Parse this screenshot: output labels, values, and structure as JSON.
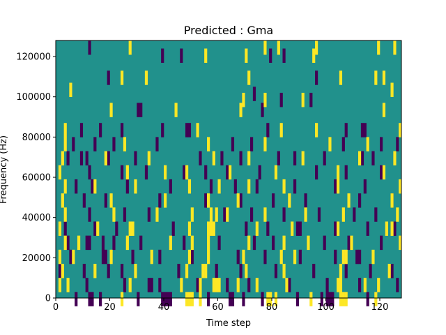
{
  "chart_data": {
    "type": "heatmap",
    "title": "Predicted : Gma",
    "xlabel": "Time step",
    "ylabel": "Frequency (Hz)",
    "xlim": [
      0,
      128
    ],
    "ylim": [
      0,
      128000
    ],
    "x_ticks": [
      0,
      20,
      40,
      60,
      80,
      100,
      120
    ],
    "y_ticks": [
      0,
      20000,
      40000,
      60000,
      80000,
      100000,
      120000
    ],
    "colors": {
      "background": "#21918c",
      "low": "#440154",
      "high": "#fde725"
    },
    "grid": false,
    "legend": "none",
    "cells": {
      "low": [
        [
          12,
          127
        ],
        [
          39,
          123
        ],
        [
          46,
          123
        ],
        [
          79,
          123
        ],
        [
          84,
          123
        ],
        [
          19,
          112
        ],
        [
          96,
          112
        ],
        [
          73,
          104
        ],
        [
          83,
          101
        ],
        [
          94,
          101
        ],
        [
          30,
          96
        ],
        [
          31,
          96
        ],
        [
          76,
          96
        ],
        [
          9,
          86
        ],
        [
          16,
          86
        ],
        [
          24,
          86
        ],
        [
          39,
          86
        ],
        [
          48,
          86
        ],
        [
          49,
          86
        ],
        [
          78,
          86
        ],
        [
          107,
          86
        ],
        [
          113,
          86
        ],
        [
          114,
          86
        ],
        [
          6,
          79
        ],
        [
          14,
          79
        ],
        [
          21,
          79
        ],
        [
          37,
          79
        ],
        [
          65,
          79
        ],
        [
          72,
          79
        ],
        [
          106,
          79
        ],
        [
          120,
          79
        ],
        [
          126,
          79
        ],
        [
          4,
          72
        ],
        [
          9,
          72
        ],
        [
          11,
          72
        ],
        [
          19,
          72
        ],
        [
          29,
          72
        ],
        [
          53,
          72
        ],
        [
          61,
          72
        ],
        [
          68,
          72
        ],
        [
          82,
          72
        ],
        [
          88,
          72
        ],
        [
          99,
          72
        ],
        [
          113,
          72
        ],
        [
          117,
          72
        ],
        [
          12,
          65
        ],
        [
          24,
          65
        ],
        [
          33,
          65
        ],
        [
          47,
          65
        ],
        [
          55,
          65
        ],
        [
          63,
          65
        ],
        [
          75,
          65
        ],
        [
          96,
          65
        ],
        [
          107,
          65
        ],
        [
          120,
          65
        ],
        [
          7,
          58
        ],
        [
          13,
          58
        ],
        [
          26,
          58
        ],
        [
          42,
          58
        ],
        [
          57,
          58
        ],
        [
          66,
          58
        ],
        [
          74,
          58
        ],
        [
          88,
          58
        ],
        [
          103,
          58
        ],
        [
          114,
          58
        ],
        [
          10,
          51
        ],
        [
          18,
          51
        ],
        [
          38,
          51
        ],
        [
          55,
          51
        ],
        [
          68,
          51
        ],
        [
          80,
          51
        ],
        [
          92,
          51
        ],
        [
          112,
          51
        ],
        [
          124,
          51
        ],
        [
          12,
          44
        ],
        [
          25,
          44
        ],
        [
          34,
          44
        ],
        [
          62,
          44
        ],
        [
          72,
          44
        ],
        [
          84,
          44
        ],
        [
          97,
          44
        ],
        [
          110,
          44
        ],
        [
          118,
          44
        ],
        [
          3,
          37
        ],
        [
          14,
          37
        ],
        [
          22,
          37
        ],
        [
          43,
          37
        ],
        [
          57,
          37
        ],
        [
          70,
          37
        ],
        [
          78,
          37
        ],
        [
          89,
          37
        ],
        [
          90,
          37
        ],
        [
          103,
          37
        ],
        [
          115,
          37
        ],
        [
          125,
          37
        ],
        [
          4,
          30
        ],
        [
          11,
          30
        ],
        [
          12,
          30
        ],
        [
          17,
          30
        ],
        [
          21,
          30
        ],
        [
          31,
          30
        ],
        [
          47,
          30
        ],
        [
          60,
          30
        ],
        [
          73,
          30
        ],
        [
          80,
          30
        ],
        [
          99,
          30
        ],
        [
          108,
          30
        ],
        [
          120,
          30
        ],
        [
          5,
          23
        ],
        [
          17,
          23
        ],
        [
          18,
          23
        ],
        [
          28,
          23
        ],
        [
          38,
          23
        ],
        [
          50,
          23
        ],
        [
          67,
          23
        ],
        [
          77,
          23
        ],
        [
          90,
          23
        ],
        [
          103,
          23
        ],
        [
          111,
          23
        ],
        [
          112,
          23
        ],
        [
          1,
          16
        ],
        [
          10,
          16
        ],
        [
          19,
          16
        ],
        [
          24,
          16
        ],
        [
          45,
          16
        ],
        [
          59,
          16
        ],
        [
          68,
          16
        ],
        [
          81,
          16
        ],
        [
          95,
          16
        ],
        [
          107,
          16
        ],
        [
          116,
          16
        ],
        [
          124,
          16
        ],
        [
          11,
          9
        ],
        [
          25,
          9
        ],
        [
          34,
          9
        ],
        [
          35,
          9
        ],
        [
          38,
          9
        ],
        [
          52,
          9
        ],
        [
          63,
          9
        ],
        [
          71,
          9
        ],
        [
          86,
          9
        ],
        [
          100,
          9
        ],
        [
          112,
          9
        ],
        [
          126,
          9
        ],
        [
          7,
          2
        ],
        [
          12,
          2
        ],
        [
          13,
          2
        ],
        [
          16,
          2
        ],
        [
          30,
          2
        ],
        [
          39,
          2
        ],
        [
          40,
          2
        ],
        [
          41,
          2
        ],
        [
          42,
          2
        ],
        [
          56,
          2
        ],
        [
          64,
          2
        ],
        [
          65,
          2
        ],
        [
          69,
          2
        ],
        [
          76,
          2
        ],
        [
          89,
          2
        ],
        [
          98,
          2
        ],
        [
          100,
          2
        ],
        [
          101,
          2
        ],
        [
          102,
          2
        ],
        [
          115,
          2
        ]
      ],
      "high": [
        [
          27,
          127
        ],
        [
          77,
          127
        ],
        [
          82,
          127
        ],
        [
          96,
          127
        ],
        [
          119,
          127
        ],
        [
          125,
          127
        ],
        [
          55,
          123
        ],
        [
          70,
          123
        ],
        [
          95,
          123
        ],
        [
          24,
          112
        ],
        [
          33,
          112
        ],
        [
          71,
          112
        ],
        [
          105,
          112
        ],
        [
          118,
          112
        ],
        [
          121,
          112
        ],
        [
          5,
          106
        ],
        [
          124,
          106
        ],
        [
          69,
          101
        ],
        [
          77,
          101
        ],
        [
          91,
          101
        ],
        [
          20,
          96
        ],
        [
          44,
          96
        ],
        [
          68,
          96
        ],
        [
          121,
          96
        ],
        [
          3,
          86
        ],
        [
          52,
          86
        ],
        [
          83,
          86
        ],
        [
          96,
          86
        ],
        [
          127,
          86
        ],
        [
          3,
          79
        ],
        [
          25,
          79
        ],
        [
          56,
          79
        ],
        [
          77,
          79
        ],
        [
          101,
          79
        ],
        [
          115,
          79
        ],
        [
          2,
          72
        ],
        [
          18,
          72
        ],
        [
          34,
          72
        ],
        [
          58,
          72
        ],
        [
          71,
          72
        ],
        [
          91,
          72
        ],
        [
          112,
          72
        ],
        [
          125,
          72
        ],
        [
          1,
          65
        ],
        [
          26,
          65
        ],
        [
          40,
          65
        ],
        [
          48,
          65
        ],
        [
          64,
          65
        ],
        [
          81,
          65
        ],
        [
          104,
          65
        ],
        [
          121,
          65
        ],
        [
          3,
          58
        ],
        [
          14,
          58
        ],
        [
          29,
          58
        ],
        [
          49,
          58
        ],
        [
          60,
          58
        ],
        [
          71,
          58
        ],
        [
          84,
          58
        ],
        [
          104,
          58
        ],
        [
          127,
          58
        ],
        [
          2,
          51
        ],
        [
          20,
          51
        ],
        [
          40,
          51
        ],
        [
          56,
          51
        ],
        [
          67,
          51
        ],
        [
          86,
          51
        ],
        [
          108,
          51
        ],
        [
          124,
          51
        ],
        [
          3,
          44
        ],
        [
          21,
          44
        ],
        [
          37,
          44
        ],
        [
          50,
          44
        ],
        [
          57,
          44
        ],
        [
          59,
          44
        ],
        [
          63,
          44
        ],
        [
          77,
          44
        ],
        [
          92,
          44
        ],
        [
          106,
          44
        ],
        [
          126,
          44
        ],
        [
          1,
          37
        ],
        [
          15,
          37
        ],
        [
          27,
          37
        ],
        [
          28,
          37
        ],
        [
          49,
          37
        ],
        [
          56,
          37
        ],
        [
          57,
          37
        ],
        [
          58,
          37
        ],
        [
          74,
          37
        ],
        [
          87,
          37
        ],
        [
          104,
          37
        ],
        [
          122,
          37
        ],
        [
          124,
          37
        ],
        [
          3,
          30
        ],
        [
          8,
          30
        ],
        [
          26,
          30
        ],
        [
          42,
          30
        ],
        [
          50,
          30
        ],
        [
          56,
          30
        ],
        [
          71,
          30
        ],
        [
          84,
          30
        ],
        [
          93,
          30
        ],
        [
          109,
          30
        ],
        [
          127,
          30
        ],
        [
          1,
          23
        ],
        [
          6,
          23
        ],
        [
          20,
          23
        ],
        [
          35,
          23
        ],
        [
          49,
          23
        ],
        [
          56,
          23
        ],
        [
          69,
          23
        ],
        [
          83,
          23
        ],
        [
          88,
          23
        ],
        [
          106,
          23
        ],
        [
          107,
          23
        ],
        [
          117,
          23
        ],
        [
          2,
          16
        ],
        [
          14,
          16
        ],
        [
          29,
          16
        ],
        [
          48,
          16
        ],
        [
          54,
          16
        ],
        [
          55,
          16
        ],
        [
          70,
          16
        ],
        [
          84,
          16
        ],
        [
          105,
          16
        ],
        [
          123,
          16
        ],
        [
          1,
          9
        ],
        [
          4,
          9
        ],
        [
          27,
          9
        ],
        [
          46,
          9
        ],
        [
          53,
          9
        ],
        [
          58,
          9
        ],
        [
          59,
          9
        ],
        [
          60,
          9
        ],
        [
          67,
          9
        ],
        [
          74,
          9
        ],
        [
          85,
          9
        ],
        [
          104,
          9
        ],
        [
          105,
          9
        ],
        [
          114,
          9
        ],
        [
          119,
          9
        ],
        [
          24,
          2
        ],
        [
          48,
          2
        ],
        [
          49,
          2
        ],
        [
          50,
          2
        ],
        [
          53,
          2
        ],
        [
          78,
          2
        ],
        [
          79,
          2
        ],
        [
          81,
          2
        ],
        [
          94,
          2
        ],
        [
          105,
          2
        ],
        [
          106,
          2
        ],
        [
          107,
          2
        ],
        [
          118,
          2
        ]
      ]
    }
  }
}
